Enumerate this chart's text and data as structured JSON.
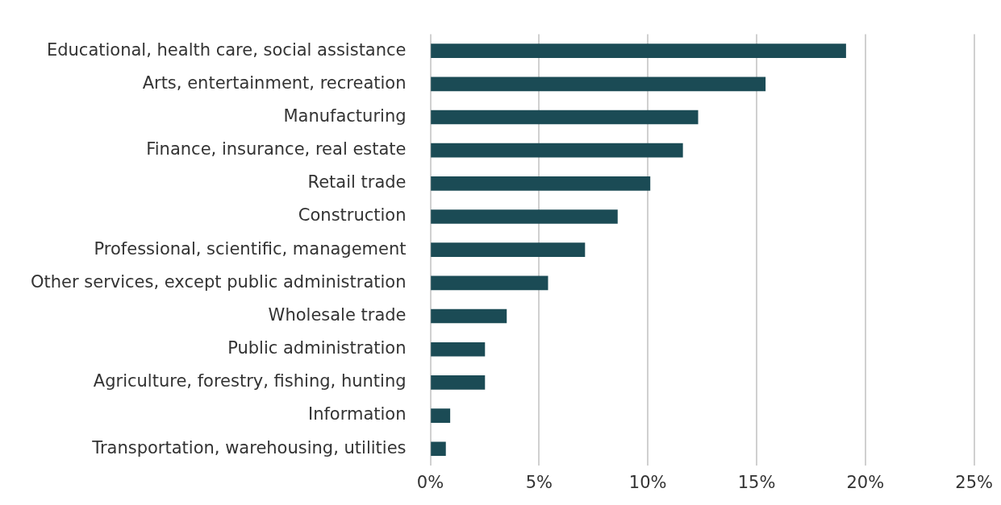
{
  "chart_data": {
    "type": "bar",
    "orientation": "horizontal",
    "categories": [
      "Educational, health care, social assistance",
      "Arts, entertainment, recreation",
      "Manufacturing",
      "Finance, insurance, real estate",
      "Retail trade",
      "Construction",
      "Professional, scientific, management",
      "Other services, except public administration",
      "Wholesale trade",
      "Public administration",
      "Agriculture, forestry, fishing, hunting",
      "Information",
      "Transportation, warehousing, utilities"
    ],
    "values": [
      19.1,
      15.4,
      12.3,
      11.6,
      10.1,
      8.6,
      7.1,
      5.4,
      3.5,
      2.5,
      2.5,
      0.9,
      0.7
    ],
    "color": "#1b4b55",
    "xlim": [
      0,
      25
    ],
    "xticks": [
      {
        "value": 0,
        "label": "0%"
      },
      {
        "value": 5,
        "label": "5%"
      },
      {
        "value": 10,
        "label": "10%"
      },
      {
        "value": 15,
        "label": "15%"
      },
      {
        "value": 20,
        "label": "20%"
      },
      {
        "value": 25,
        "label": "25%"
      }
    ],
    "grid": "x",
    "legend": false
  }
}
